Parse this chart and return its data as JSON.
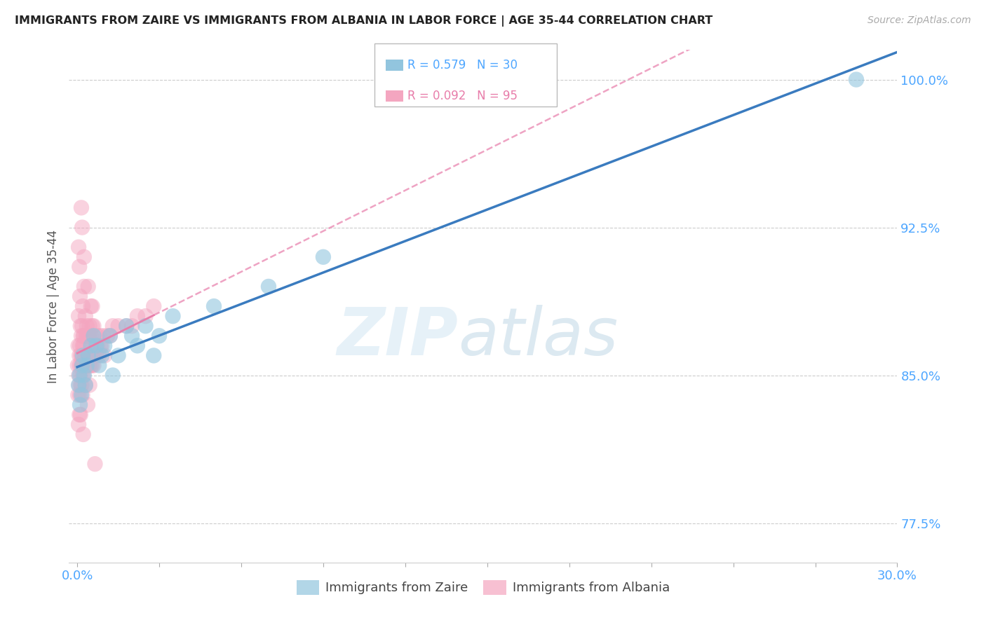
{
  "title": "IMMIGRANTS FROM ZAIRE VS IMMIGRANTS FROM ALBANIA IN LABOR FORCE | AGE 35-44 CORRELATION CHART",
  "source": "Source: ZipAtlas.com",
  "xlabel_zaire": "Immigrants from Zaire",
  "xlabel_albania": "Immigrants from Albania",
  "ylabel": "In Labor Force | Age 35-44",
  "xlim": [
    -0.3,
    30.0
  ],
  "ylim": [
    75.5,
    101.5
  ],
  "yticks": [
    77.5,
    85.0,
    92.5,
    100.0
  ],
  "xticks": [
    0.0,
    3.0,
    6.0,
    9.0,
    12.0,
    15.0,
    18.0,
    21.0,
    24.0,
    27.0,
    30.0
  ],
  "ytick_labels": [
    "77.5%",
    "85.0%",
    "92.5%",
    "100.0%"
  ],
  "zaire_R": 0.579,
  "zaire_N": 30,
  "albania_R": 0.092,
  "albania_N": 95,
  "zaire_color": "#92c5de",
  "albania_color": "#f4a6c0",
  "zaire_line_color": "#3a7bbf",
  "albania_line_color": "#e87daa",
  "zaire_x": [
    0.05,
    0.08,
    0.1,
    0.15,
    0.18,
    0.2,
    0.25,
    0.3,
    0.35,
    0.4,
    0.5,
    0.6,
    0.7,
    0.8,
    0.9,
    1.0,
    1.2,
    1.5,
    1.8,
    2.0,
    2.5,
    3.0,
    3.5,
    5.0,
    7.0,
    9.0,
    2.2,
    2.8,
    28.5,
    1.3
  ],
  "zaire_y": [
    84.5,
    85.0,
    83.5,
    84.0,
    85.5,
    86.0,
    85.0,
    84.5,
    85.5,
    86.0,
    86.5,
    87.0,
    86.5,
    85.5,
    86.0,
    86.5,
    87.0,
    86.0,
    87.5,
    87.0,
    87.5,
    87.0,
    88.0,
    88.5,
    89.5,
    91.0,
    86.5,
    86.0,
    100.0,
    85.0
  ],
  "albania_x": [
    0.02,
    0.03,
    0.04,
    0.05,
    0.05,
    0.06,
    0.07,
    0.08,
    0.08,
    0.09,
    0.1,
    0.1,
    0.1,
    0.12,
    0.12,
    0.13,
    0.14,
    0.15,
    0.15,
    0.16,
    0.17,
    0.18,
    0.18,
    0.19,
    0.2,
    0.2,
    0.2,
    0.22,
    0.22,
    0.23,
    0.24,
    0.25,
    0.25,
    0.25,
    0.27,
    0.28,
    0.3,
    0.3,
    0.3,
    0.32,
    0.33,
    0.35,
    0.35,
    0.36,
    0.38,
    0.4,
    0.4,
    0.4,
    0.42,
    0.43,
    0.45,
    0.45,
    0.48,
    0.5,
    0.5,
    0.5,
    0.52,
    0.55,
    0.55,
    0.58,
    0.6,
    0.6,
    0.62,
    0.65,
    0.7,
    0.72,
    0.75,
    0.8,
    0.82,
    0.85,
    0.9,
    0.95,
    1.0,
    1.1,
    1.2,
    1.3,
    1.5,
    1.8,
    2.0,
    2.2,
    2.5,
    2.8,
    0.05,
    0.15,
    0.25,
    0.35,
    0.08,
    0.12,
    0.18,
    0.22,
    0.3,
    0.38,
    0.45,
    0.55,
    0.65
  ],
  "albania_y": [
    85.5,
    84.0,
    86.5,
    82.5,
    88.0,
    85.0,
    84.5,
    86.0,
    83.0,
    85.5,
    84.0,
    86.5,
    89.0,
    85.0,
    87.5,
    84.5,
    86.0,
    85.5,
    87.0,
    84.5,
    86.0,
    85.5,
    87.5,
    84.0,
    85.0,
    86.5,
    88.5,
    85.5,
    87.0,
    85.0,
    86.5,
    85.5,
    87.0,
    89.5,
    86.0,
    85.5,
    84.5,
    86.0,
    88.0,
    85.5,
    87.0,
    86.0,
    87.5,
    85.5,
    86.0,
    85.5,
    87.0,
    89.5,
    85.5,
    87.0,
    85.5,
    87.5,
    86.0,
    85.5,
    87.0,
    88.5,
    86.0,
    85.5,
    87.5,
    86.0,
    85.5,
    87.5,
    86.0,
    86.5,
    86.0,
    87.0,
    86.5,
    86.0,
    87.0,
    86.5,
    86.5,
    87.0,
    86.0,
    87.0,
    87.0,
    87.5,
    87.5,
    87.5,
    87.5,
    88.0,
    88.0,
    88.5,
    91.5,
    93.5,
    91.0,
    87.0,
    90.5,
    83.0,
    92.5,
    82.0,
    86.0,
    83.5,
    84.5,
    88.5,
    80.5
  ]
}
